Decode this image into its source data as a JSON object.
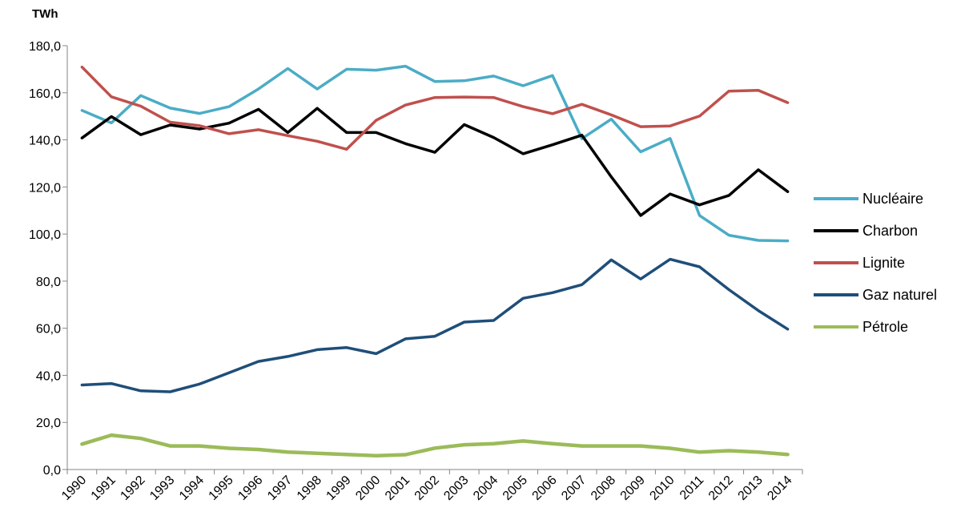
{
  "chart_data": {
    "type": "line",
    "title": "",
    "ylabel": "TWh",
    "xlabel": "",
    "ylim": [
      0,
      180
    ],
    "ytick_step": 20,
    "ytick_labels": [
      "0,0",
      "20,0",
      "40,0",
      "60,0",
      "80,0",
      "100,0",
      "120,0",
      "140,0",
      "160,0",
      "180,0"
    ],
    "grid": false,
    "legend_position": "right",
    "categories": [
      "1990",
      "1991",
      "1992",
      "1993",
      "1994",
      "1995",
      "1996",
      "1997",
      "1998",
      "1999",
      "2000",
      "2001",
      "2002",
      "2003",
      "2004",
      "2005",
      "2006",
      "2007",
      "2008",
      "2009",
      "2010",
      "2011",
      "2012",
      "2013",
      "2014"
    ],
    "series": [
      {
        "name": "Nucléaire",
        "color": "#4bacc6",
        "values": [
          152.5,
          147.2,
          158.8,
          153.5,
          151.2,
          154.1,
          161.6,
          170.3,
          161.6,
          170.0,
          169.6,
          171.3,
          164.8,
          165.1,
          167.1,
          163.0,
          167.3,
          140.5,
          148.8,
          134.9,
          140.6,
          107.9,
          99.5,
          97.3,
          97.1
        ]
      },
      {
        "name": "Charbon",
        "color": "#000000",
        "values": [
          140.8,
          149.9,
          142.2,
          146.3,
          144.6,
          147.1,
          153.0,
          143.1,
          153.4,
          143.1,
          143.1,
          138.4,
          134.7,
          146.5,
          141.0,
          134.1,
          137.9,
          142.0,
          124.3,
          107.9,
          117.0,
          112.4,
          116.4,
          127.3,
          118.0
        ]
      },
      {
        "name": "Lignite",
        "color": "#c0504d",
        "values": [
          170.9,
          158.3,
          154.3,
          147.5,
          146.0,
          142.6,
          144.3,
          141.8,
          139.4,
          136.0,
          148.3,
          154.8,
          158.0,
          158.2,
          158.0,
          154.1,
          151.1,
          155.1,
          150.6,
          145.6,
          145.9,
          150.1,
          160.7,
          161.0,
          155.8
        ]
      },
      {
        "name": "Gaz naturel",
        "color": "#1f4e79",
        "values": [
          35.9,
          36.5,
          33.4,
          33.0,
          36.3,
          41.1,
          45.9,
          48.0,
          50.9,
          51.8,
          49.2,
          55.5,
          56.6,
          62.6,
          63.3,
          72.7,
          75.1,
          78.5,
          89.0,
          80.9,
          89.3,
          86.1,
          76.4,
          67.5,
          59.6
        ]
      },
      {
        "name": "Pétrole",
        "color": "#9bbb59",
        "values": [
          10.8,
          14.6,
          13.2,
          10.0,
          10.0,
          9.0,
          8.5,
          7.4,
          6.9,
          6.4,
          5.9,
          6.3,
          9.1,
          10.5,
          11.0,
          12.1,
          11.0,
          10.0,
          10.0,
          10.0,
          9.0,
          7.4,
          8.0,
          7.4,
          6.4
        ]
      }
    ]
  }
}
